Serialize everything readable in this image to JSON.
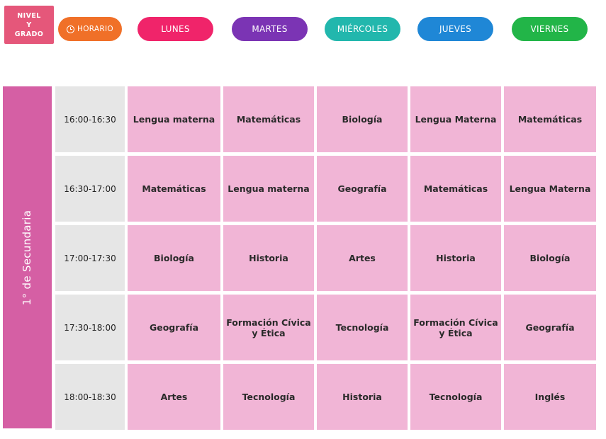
{
  "header": {
    "nivel_lines": [
      "NIVEL",
      "Y",
      "GRADO"
    ],
    "horario_label": "HORARIO",
    "days": [
      "LUNES",
      "MARTES",
      "MIÉRCOLES",
      "JUEVES",
      "VIERNES"
    ]
  },
  "colors": {
    "nivel": "#e5577a",
    "horario": "#f07028",
    "lunes": "#f0246a",
    "martes": "#7b34b4",
    "miercoles": "#22b7ad",
    "jueves": "#1f87d6",
    "viernes": "#22b548",
    "side": "#d55fa4",
    "cell": "#f1b5d6",
    "time_cell": "#e6e6e6"
  },
  "grade_label": "1° de Secundaria",
  "schedule": {
    "rows": [
      {
        "time": "16:00-16:30",
        "subjects": [
          "Lengua materna",
          "Matemáticas",
          "Biología",
          "Lengua Materna",
          "Matemáticas"
        ]
      },
      {
        "time": "16:30-17:00",
        "subjects": [
          "Matemáticas",
          "Lengua materna",
          "Geografía",
          "Matemáticas",
          "Lengua Materna"
        ]
      },
      {
        "time": "17:00-17:30",
        "subjects": [
          "Biología",
          "Historia",
          "Artes",
          "Historia",
          "Biología"
        ]
      },
      {
        "time": "17:30-18:00",
        "subjects": [
          "Geografía",
          "Formación Cívica y Ética",
          "Tecnología",
          "Formación Cívica y Ética",
          "Geografía"
        ]
      },
      {
        "time": "18:00-18:30",
        "subjects": [
          "Artes",
          "Tecnología",
          "Historia",
          "Tecnología",
          "Inglés"
        ]
      }
    ]
  }
}
